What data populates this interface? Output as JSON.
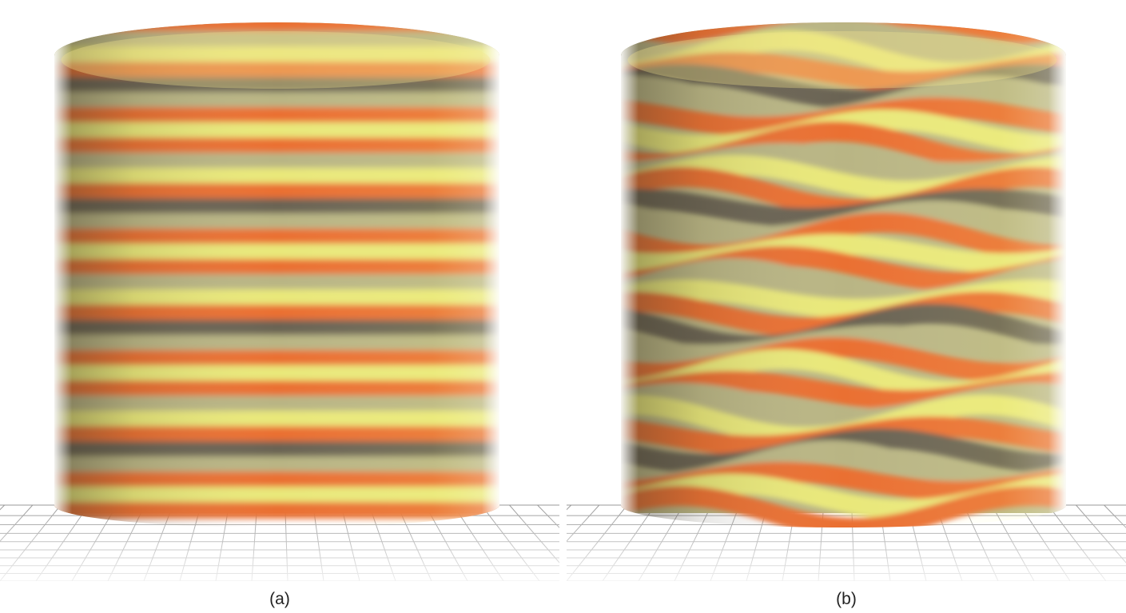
{
  "figure": {
    "panels": [
      {
        "label": "(a)",
        "variant": "flat-bands"
      },
      {
        "label": "(b)",
        "variant": "wavy-bands"
      }
    ],
    "colors": {
      "orange": "#ea6f32",
      "yellow": "#e9e87a",
      "olive": "#b9b584",
      "dark": "#6b6452",
      "grid": "#9a9a9a",
      "background": "#ffffff"
    }
  }
}
